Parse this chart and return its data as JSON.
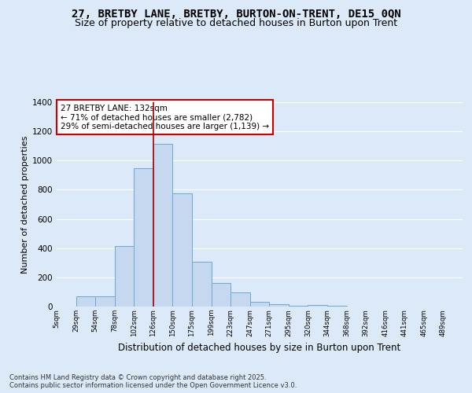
{
  "title1": "27, BRETBY LANE, BRETBY, BURTON-ON-TRENT, DE15 0QN",
  "title2": "Size of property relative to detached houses in Burton upon Trent",
  "xlabel": "Distribution of detached houses by size in Burton upon Trent",
  "ylabel": "Number of detached properties",
  "categories": [
    "5sqm",
    "29sqm",
    "54sqm",
    "78sqm",
    "102sqm",
    "126sqm",
    "150sqm",
    "175sqm",
    "199sqm",
    "223sqm",
    "247sqm",
    "271sqm",
    "295sqm",
    "320sqm",
    "344sqm",
    "368sqm",
    "392sqm",
    "416sqm",
    "441sqm",
    "465sqm",
    "489sqm"
  ],
  "bar_heights": [
    0,
    68,
    68,
    415,
    950,
    1115,
    775,
    308,
    163,
    98,
    35,
    15,
    8,
    10,
    5,
    0,
    0,
    0,
    0,
    0,
    0
  ],
  "bar_color": "#c5d8f0",
  "bar_edge_color": "#6aaad4",
  "vline_x": 5,
  "vline_color": "#aa0000",
  "annotation_text": "27 BRETBY LANE: 132sqm\n← 71% of detached houses are smaller (2,782)\n29% of semi-detached houses are larger (1,139) →",
  "annotation_box_color": "#ffffff",
  "annotation_box_edge": "#cc0000",
  "ylim": [
    0,
    1400
  ],
  "yticks": [
    0,
    200,
    400,
    600,
    800,
    1000,
    1200,
    1400
  ],
  "bg_color": "#dce9f8",
  "plot_bg": "#dce9f8",
  "footnote": "Contains HM Land Registry data © Crown copyright and database right 2025.\nContains public sector information licensed under the Open Government Licence v3.0.",
  "title1_fontsize": 10,
  "title2_fontsize": 9,
  "xlabel_fontsize": 8.5,
  "ylabel_fontsize": 8
}
